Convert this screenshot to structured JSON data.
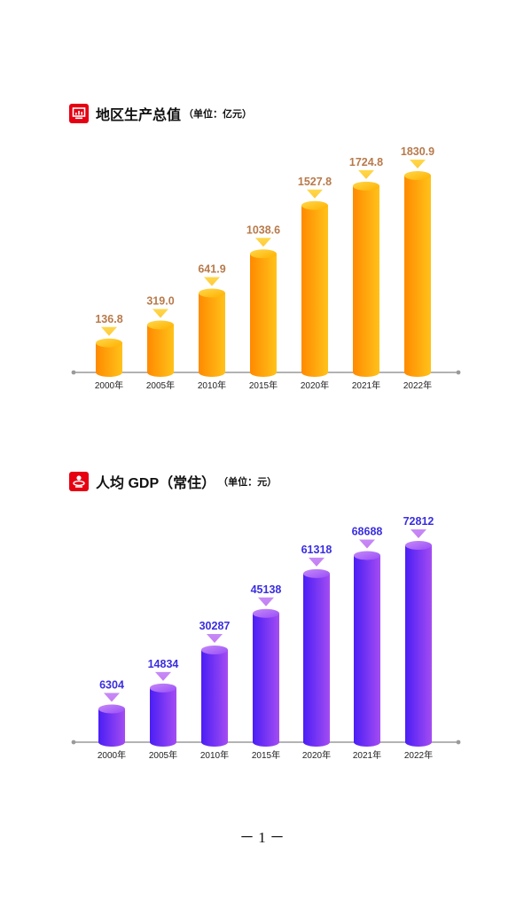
{
  "charts": [
    {
      "title": "地区生产总值",
      "unit": "（单位：亿元）",
      "icon": "monitor-chart-icon",
      "label_color": "#b87a4b",
      "colors": {
        "side": "#ff8a00",
        "front": "#ffc21a",
        "top": "#ffb000",
        "top_light": "#ffd84a",
        "marker": "#ffc93a"
      }
    },
    {
      "title": "人均 GDP（常住）",
      "unit": "（单位：元）",
      "icon": "person-globe-icon",
      "label_color": "#3a2ee0",
      "colors": {
        "side": "#4a1ef5",
        "front": "#a44cf2",
        "top": "#9a4ef7",
        "top_light": "#c58af8",
        "marker": "#c77df0"
      }
    }
  ],
  "chart_data": [
    {
      "type": "bar",
      "title": "地区生产总值",
      "ylabel": "",
      "unit": "亿元",
      "categories": [
        "2000年",
        "2005年",
        "2010年",
        "2015年",
        "2020年",
        "2021年",
        "2022年"
      ],
      "values": [
        136.8,
        319.0,
        641.9,
        1038.6,
        1527.8,
        1724.8,
        1830.9
      ],
      "value_labels": [
        "136.8",
        "319.0",
        "641.9",
        "1038.6",
        "1527.8",
        "1724.8",
        "1830.9"
      ],
      "ylim": [
        0,
        1830.9
      ],
      "grid": false
    },
    {
      "type": "bar",
      "title": "人均 GDP（常住）",
      "ylabel": "",
      "unit": "元",
      "categories": [
        "2000年",
        "2005年",
        "2010年",
        "2015年",
        "2020年",
        "2021年",
        "2022年"
      ],
      "values": [
        6304,
        14834,
        30287,
        45138,
        61318,
        68688,
        72812
      ],
      "value_labels": [
        "6304",
        "14834",
        "30287",
        "45138",
        "61318",
        "68688",
        "72812"
      ],
      "ylim": [
        0,
        72812
      ],
      "grid": false
    }
  ],
  "footer": {
    "page_number": "－ 1 －"
  }
}
